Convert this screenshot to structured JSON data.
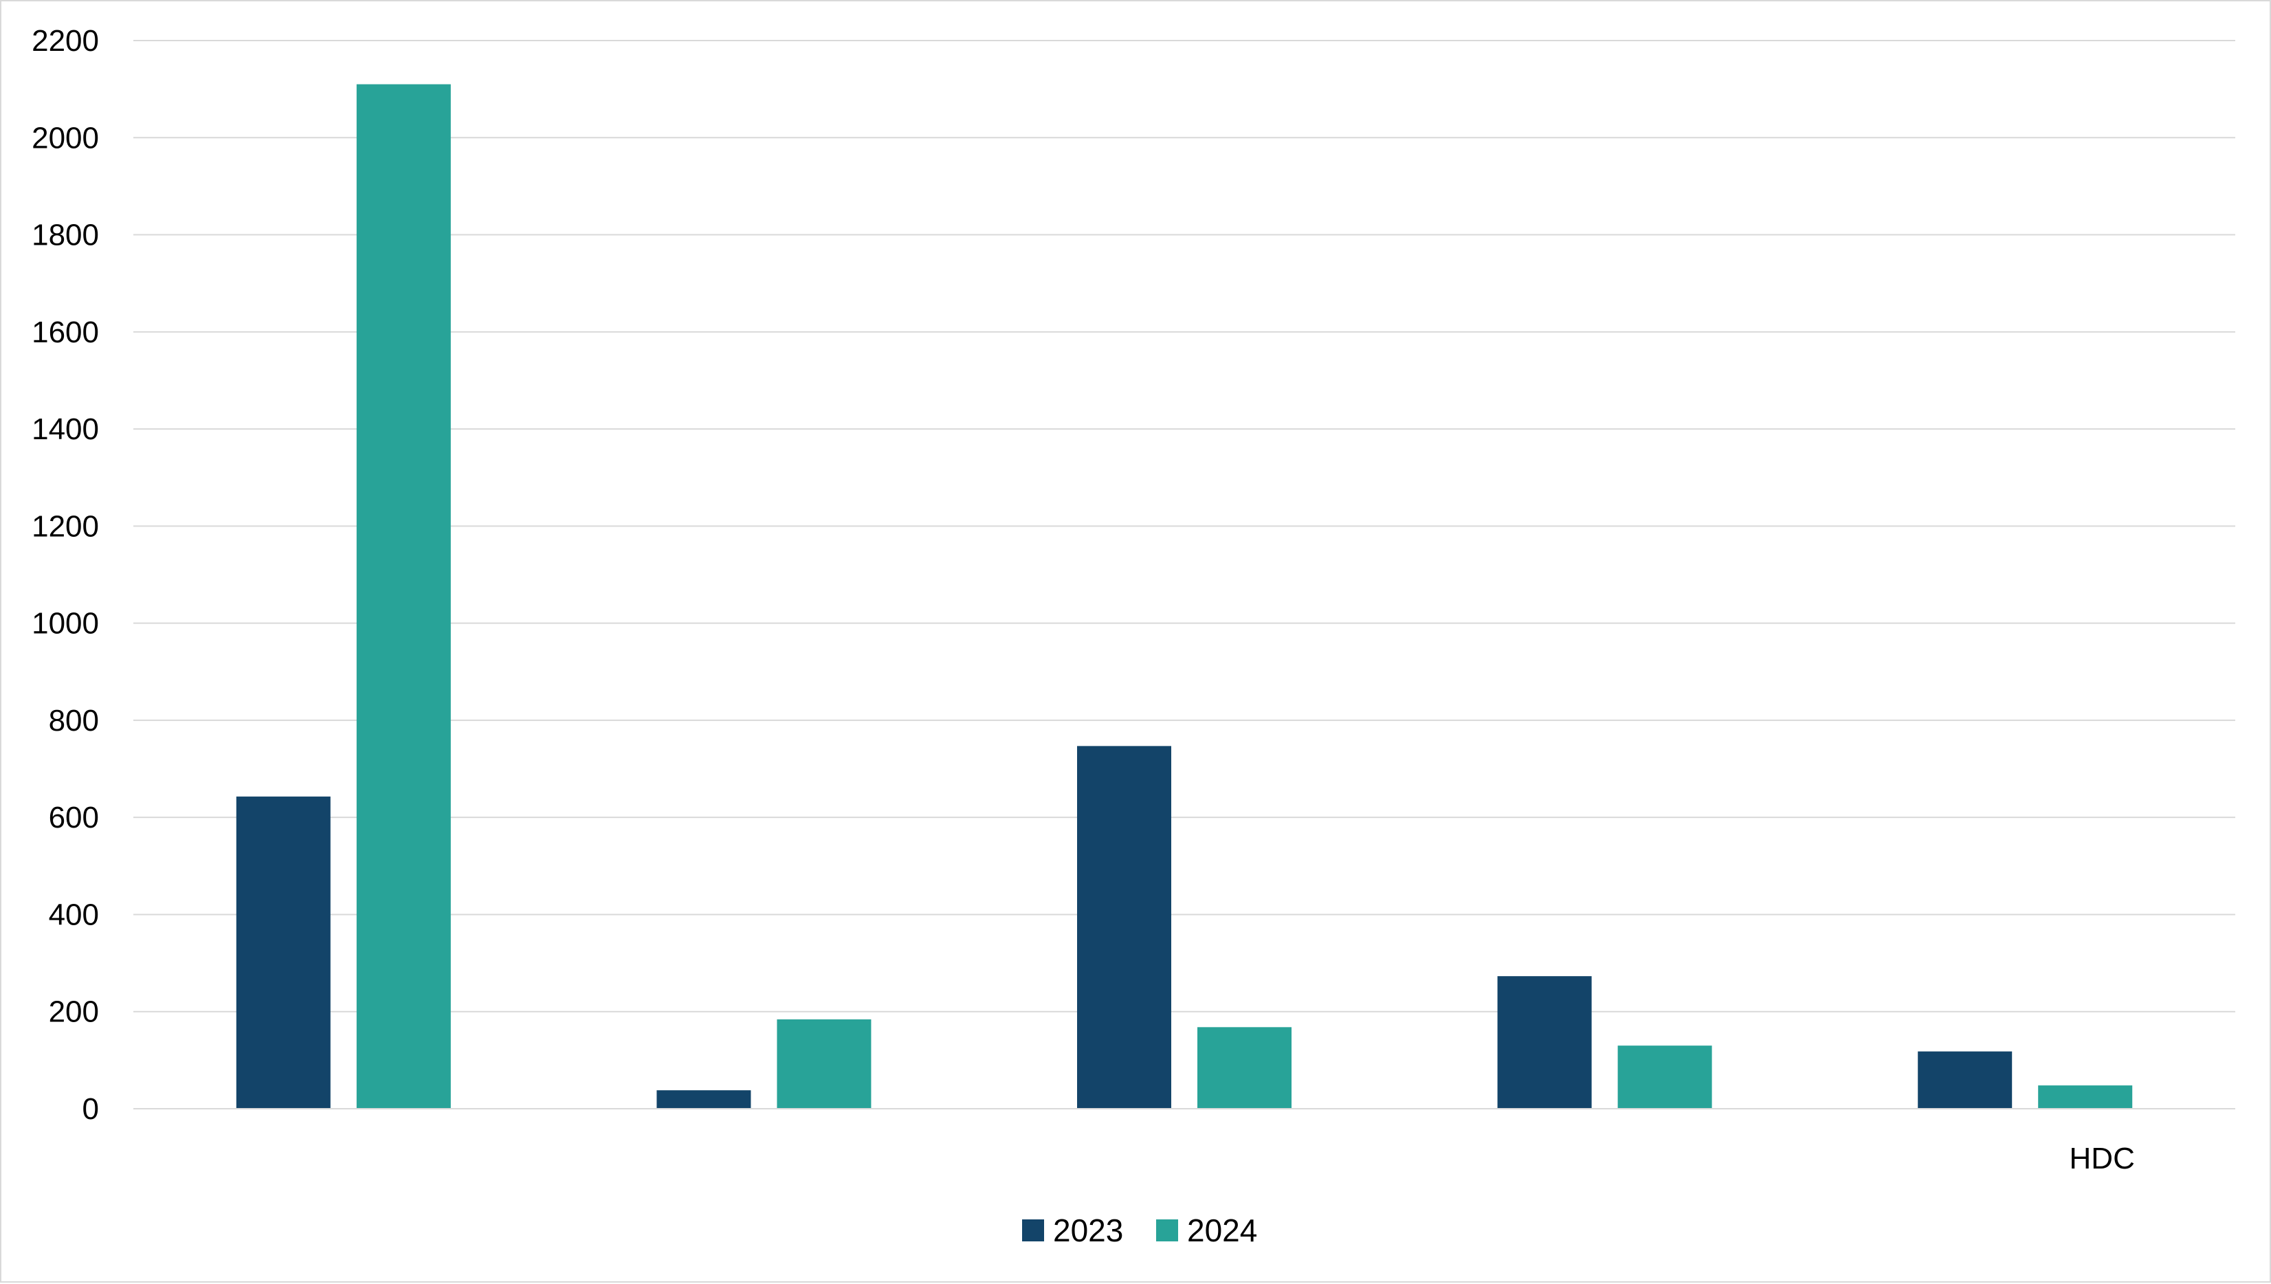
{
  "chart_data": {
    "type": "bar",
    "categories": [
      "",
      "",
      "",
      "",
      "HDC"
    ],
    "series": [
      {
        "name": "2023",
        "color": "#134469",
        "values": [
          643,
          38,
          747,
          273,
          118
        ]
      },
      {
        "name": "2024",
        "color": "#28A398",
        "values": [
          2110,
          184,
          168,
          130,
          48
        ]
      }
    ],
    "title": "",
    "xlabel": "",
    "ylabel": "",
    "ylim": [
      0,
      2200
    ],
    "yticks": [
      0,
      200,
      400,
      600,
      800,
      1000,
      1200,
      1400,
      1600,
      1800,
      2000,
      2200
    ],
    "grid": true,
    "legend_position": "bottom"
  }
}
